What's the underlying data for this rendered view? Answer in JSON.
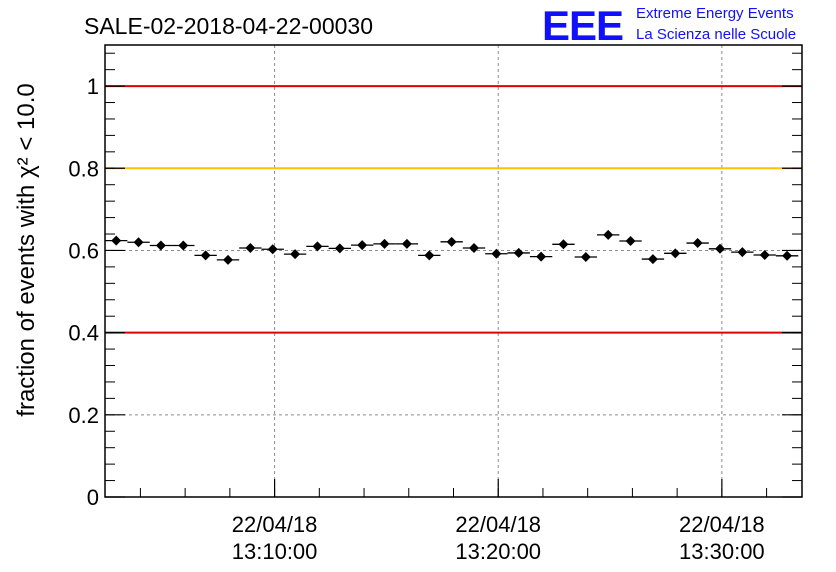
{
  "logo": {
    "mark": "EEE",
    "line1": "Extreme Energy Events",
    "line2": "La Scienza nelle Scuole",
    "color": "#1010ff"
  },
  "chart_data": {
    "type": "scatter",
    "title": "SALE-02-2018-04-22-00030",
    "ylabel": "fraction of events with χ² < 10.0",
    "ylim": [
      0,
      1.1
    ],
    "yticks": [
      0,
      0.2,
      0.4,
      0.6,
      0.8,
      1
    ],
    "ytick_labels": [
      "0",
      "0.2",
      "0.4",
      "0.6",
      "0.8",
      "1"
    ],
    "xlim": [
      "2018-04-22 13:02:25",
      "2018-04-22 13:33:35"
    ],
    "xticks": [
      "2018-04-22 13:10:00",
      "2018-04-22 13:20:00",
      "2018-04-22 13:30:00"
    ],
    "xtick_labels": [
      {
        "date": "22/04/18",
        "time": "13:10:00"
      },
      {
        "date": "22/04/18",
        "time": "13:20:00"
      },
      {
        "date": "22/04/18",
        "time": "13:30:00"
      }
    ],
    "grid": true,
    "reference_lines": [
      {
        "y": 1.0,
        "color": "#e00000"
      },
      {
        "y": 0.8,
        "color": "#ffc000"
      },
      {
        "y": 0.4,
        "color": "#e00000"
      }
    ],
    "series": [
      {
        "color": "#000000",
        "bin_minutes": 1,
        "x": [
          "2018-04-22 13:02:55",
          "2018-04-22 13:03:55",
          "2018-04-22 13:04:55",
          "2018-04-22 13:05:55",
          "2018-04-22 13:06:55",
          "2018-04-22 13:07:55",
          "2018-04-22 13:08:55",
          "2018-04-22 13:09:55",
          "2018-04-22 13:10:55",
          "2018-04-22 13:11:55",
          "2018-04-22 13:12:55",
          "2018-04-22 13:13:55",
          "2018-04-22 13:14:55",
          "2018-04-22 13:15:55",
          "2018-04-22 13:16:55",
          "2018-04-22 13:17:55",
          "2018-04-22 13:18:55",
          "2018-04-22 13:19:55",
          "2018-04-22 13:20:55",
          "2018-04-22 13:21:55",
          "2018-04-22 13:22:55",
          "2018-04-22 13:23:55",
          "2018-04-22 13:24:55",
          "2018-04-22 13:25:55",
          "2018-04-22 13:26:55",
          "2018-04-22 13:27:55",
          "2018-04-22 13:28:55",
          "2018-04-22 13:29:55",
          "2018-04-22 13:30:55",
          "2018-04-22 13:31:55",
          "2018-04-22 13:32:55"
        ],
        "values": [
          0.624,
          0.62,
          0.612,
          0.612,
          0.588,
          0.577,
          0.606,
          0.603,
          0.591,
          0.61,
          0.605,
          0.613,
          0.616,
          0.616,
          0.588,
          0.621,
          0.606,
          0.592,
          0.594,
          0.585,
          0.615,
          0.584,
          0.638,
          0.623,
          0.579,
          0.593,
          0.618,
          0.604,
          0.596,
          0.589,
          0.587
        ],
        "errors": [
          0.009,
          0.009,
          0.009,
          0.009,
          0.009,
          0.009,
          0.009,
          0.009,
          0.009,
          0.009,
          0.009,
          0.009,
          0.009,
          0.009,
          0.009,
          0.009,
          0.009,
          0.009,
          0.009,
          0.009,
          0.009,
          0.009,
          0.009,
          0.009,
          0.009,
          0.009,
          0.009,
          0.009,
          0.009,
          0.009,
          0.009
        ]
      }
    ]
  }
}
